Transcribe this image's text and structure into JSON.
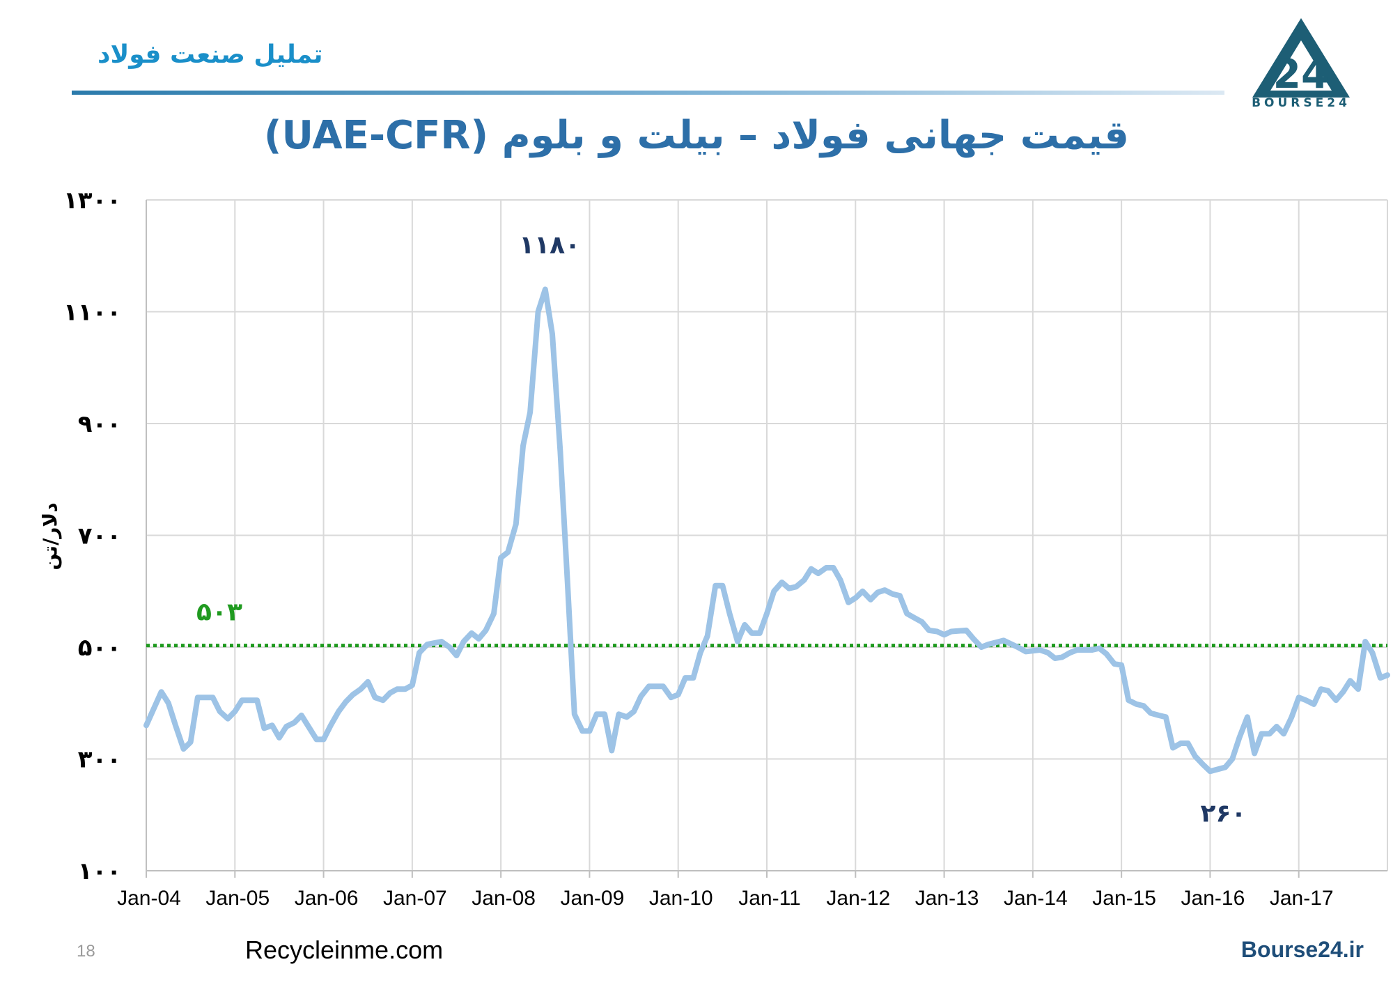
{
  "header": {
    "brand_text": "تملیل صنعت فولاد",
    "logo_caption": "BOURSE24",
    "logo_glyph": "24"
  },
  "chart_data": {
    "type": "line",
    "title": "قیمت جهانی فولاد – بیلت و بلوم (UAE-CFR)",
    "ylabel": "دلار/تن",
    "xlabel": "",
    "ylim": [
      100,
      1300
    ],
    "yticks": [
      100,
      300,
      500,
      700,
      900,
      1100,
      1300
    ],
    "ytick_labels": [
      "۱۰۰",
      "۳۰۰",
      "۵۰۰",
      "۷۰۰",
      "۹۰۰",
      "۱۱۰۰",
      "۱۳۰۰"
    ],
    "x_range_years": [
      2004,
      2018
    ],
    "xticks": [
      "Jan-04",
      "Jan-05",
      "Jan-06",
      "Jan-07",
      "Jan-08",
      "Jan-09",
      "Jan-10",
      "Jan-11",
      "Jan-12",
      "Jan-13",
      "Jan-14",
      "Jan-15",
      "Jan-16",
      "Jan-17"
    ],
    "grid": true,
    "series": [
      {
        "color": "#9dc3e6",
        "points": [
          [
            2004.0,
            360
          ],
          [
            2004.17,
            420
          ],
          [
            2004.25,
            400
          ],
          [
            2004.33,
            360
          ],
          [
            2004.42,
            318
          ],
          [
            2004.5,
            330
          ],
          [
            2004.58,
            410
          ],
          [
            2004.75,
            410
          ],
          [
            2004.83,
            385
          ],
          [
            2004.92,
            372
          ],
          [
            2005.0,
            385
          ],
          [
            2005.08,
            405
          ],
          [
            2005.25,
            405
          ],
          [
            2005.33,
            355
          ],
          [
            2005.42,
            360
          ],
          [
            2005.5,
            338
          ],
          [
            2005.58,
            358
          ],
          [
            2005.67,
            365
          ],
          [
            2005.75,
            378
          ],
          [
            2005.83,
            358
          ],
          [
            2005.92,
            335
          ],
          [
            2006.0,
            335
          ],
          [
            2006.08,
            360
          ],
          [
            2006.17,
            385
          ],
          [
            2006.25,
            402
          ],
          [
            2006.33,
            415
          ],
          [
            2006.42,
            425
          ],
          [
            2006.5,
            438
          ],
          [
            2006.58,
            410
          ],
          [
            2006.67,
            405
          ],
          [
            2006.75,
            418
          ],
          [
            2006.83,
            425
          ],
          [
            2006.92,
            425
          ],
          [
            2007.0,
            432
          ],
          [
            2007.08,
            490
          ],
          [
            2007.17,
            505
          ],
          [
            2007.33,
            510
          ],
          [
            2007.42,
            500
          ],
          [
            2007.5,
            485
          ],
          [
            2007.58,
            510
          ],
          [
            2007.67,
            525
          ],
          [
            2007.75,
            515
          ],
          [
            2007.83,
            530
          ],
          [
            2007.92,
            560
          ],
          [
            2008.0,
            660
          ],
          [
            2008.08,
            670
          ],
          [
            2008.17,
            720
          ],
          [
            2008.25,
            860
          ],
          [
            2008.33,
            920
          ],
          [
            2008.42,
            1100
          ],
          [
            2008.5,
            1140
          ],
          [
            2008.58,
            1060
          ],
          [
            2008.67,
            850
          ],
          [
            2008.75,
            620
          ],
          [
            2008.83,
            380
          ],
          [
            2008.92,
            350
          ],
          [
            2009.0,
            350
          ],
          [
            2009.08,
            380
          ],
          [
            2009.17,
            380
          ],
          [
            2009.25,
            315
          ],
          [
            2009.33,
            380
          ],
          [
            2009.42,
            375
          ],
          [
            2009.5,
            385
          ],
          [
            2009.58,
            412
          ],
          [
            2009.67,
            430
          ],
          [
            2009.83,
            430
          ],
          [
            2009.92,
            410
          ],
          [
            2010.0,
            415
          ],
          [
            2010.08,
            445
          ],
          [
            2010.17,
            445
          ],
          [
            2010.25,
            490
          ],
          [
            2010.33,
            520
          ],
          [
            2010.42,
            610
          ],
          [
            2010.5,
            610
          ],
          [
            2010.58,
            560
          ],
          [
            2010.67,
            510
          ],
          [
            2010.75,
            540
          ],
          [
            2010.83,
            525
          ],
          [
            2010.92,
            525
          ],
          [
            2011.0,
            560
          ],
          [
            2011.08,
            600
          ],
          [
            2011.17,
            616
          ],
          [
            2011.25,
            605
          ],
          [
            2011.33,
            608
          ],
          [
            2011.42,
            620
          ],
          [
            2011.5,
            640
          ],
          [
            2011.58,
            632
          ],
          [
            2011.67,
            642
          ],
          [
            2011.75,
            642
          ],
          [
            2011.83,
            620
          ],
          [
            2011.92,
            580
          ],
          [
            2012.0,
            588
          ],
          [
            2012.08,
            600
          ],
          [
            2012.17,
            585
          ],
          [
            2012.25,
            598
          ],
          [
            2012.33,
            602
          ],
          [
            2012.42,
            595
          ],
          [
            2012.5,
            592
          ],
          [
            2012.58,
            560
          ],
          [
            2012.67,
            552
          ],
          [
            2012.75,
            545
          ],
          [
            2012.83,
            530
          ],
          [
            2012.92,
            528
          ],
          [
            2013.0,
            522
          ],
          [
            2013.08,
            528
          ],
          [
            2013.25,
            530
          ],
          [
            2013.33,
            515
          ],
          [
            2013.42,
            500
          ],
          [
            2013.5,
            505
          ],
          [
            2013.67,
            512
          ],
          [
            2013.83,
            500
          ],
          [
            2013.92,
            492
          ],
          [
            2014.08,
            495
          ],
          [
            2014.17,
            490
          ],
          [
            2014.25,
            480
          ],
          [
            2014.33,
            482
          ],
          [
            2014.42,
            490
          ],
          [
            2014.5,
            495
          ],
          [
            2014.58,
            495
          ],
          [
            2014.67,
            495
          ],
          [
            2014.75,
            498
          ],
          [
            2014.83,
            488
          ],
          [
            2014.92,
            470
          ],
          [
            2015.0,
            468
          ],
          [
            2015.08,
            405
          ],
          [
            2015.17,
            398
          ],
          [
            2015.25,
            395
          ],
          [
            2015.33,
            382
          ],
          [
            2015.42,
            378
          ],
          [
            2015.5,
            375
          ],
          [
            2015.58,
            320
          ],
          [
            2015.67,
            328
          ],
          [
            2015.75,
            328
          ],
          [
            2015.83,
            305
          ],
          [
            2015.92,
            290
          ],
          [
            2016.0,
            278
          ],
          [
            2016.17,
            285
          ],
          [
            2016.25,
            300
          ],
          [
            2016.33,
            338
          ],
          [
            2016.42,
            375
          ],
          [
            2016.5,
            310
          ],
          [
            2016.58,
            345
          ],
          [
            2016.67,
            345
          ],
          [
            2016.75,
            358
          ],
          [
            2016.83,
            345
          ],
          [
            2016.92,
            375
          ],
          [
            2017.0,
            410
          ],
          [
            2017.08,
            405
          ],
          [
            2017.17,
            398
          ],
          [
            2017.25,
            425
          ],
          [
            2017.33,
            422
          ],
          [
            2017.42,
            405
          ],
          [
            2017.5,
            420
          ],
          [
            2017.58,
            440
          ],
          [
            2017.67,
            425
          ],
          [
            2017.75,
            510
          ],
          [
            2017.83,
            490
          ],
          [
            2017.92,
            445
          ],
          [
            2018.0,
            450
          ]
        ]
      }
    ],
    "reference_line": {
      "value": 503,
      "label": "۵۰۳",
      "color": "#1f9a1f"
    },
    "annotations": [
      {
        "text": "۱۱۸۰",
        "x": 2008.55,
        "y": 1180,
        "color": "#1f3864",
        "position": "above"
      },
      {
        "text": "۲۶۰",
        "x": 2016.15,
        "y": 260,
        "color": "#1f3864",
        "position": "below"
      }
    ]
  },
  "footer": {
    "page_number": "18",
    "source": "Recycleinme.com",
    "site": "Bourse24.ir"
  }
}
